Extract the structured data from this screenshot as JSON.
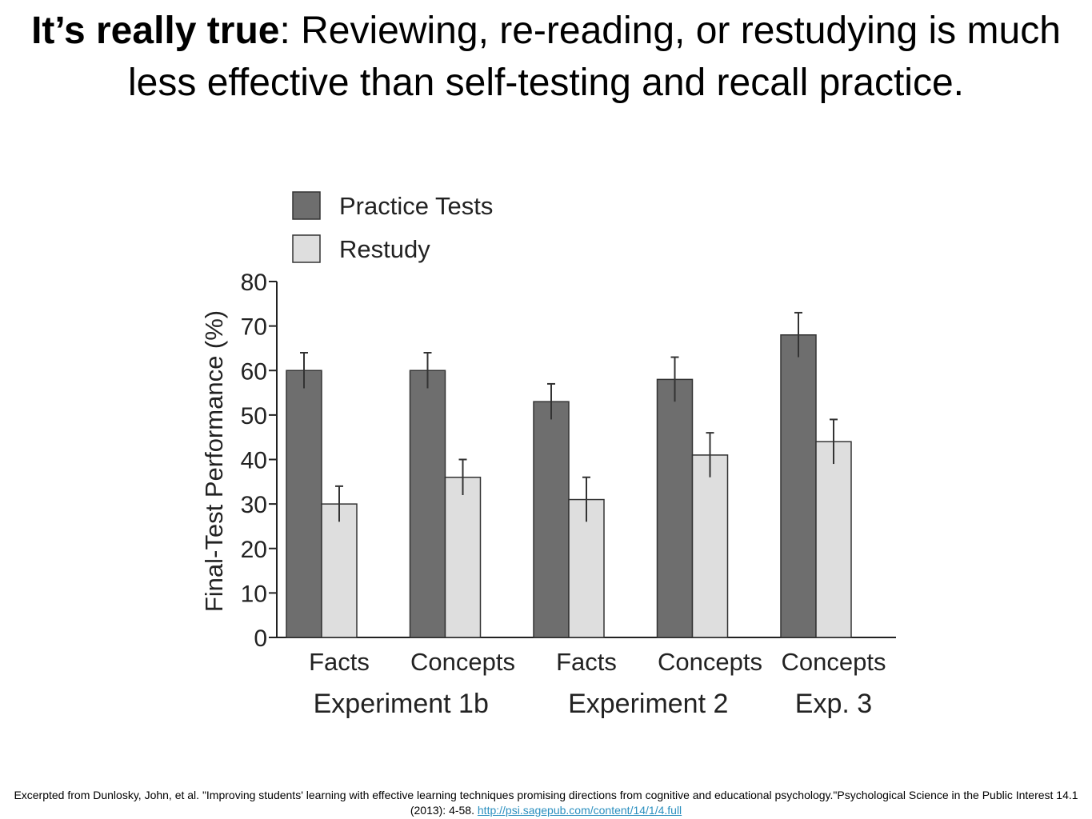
{
  "slide": {
    "title_bold": "It’s really true",
    "title_rest": ": Reviewing, re-reading, or restudying is much less effective than self-testing and recall practice.",
    "citation_text": "Excerpted from Dunlosky, John, et al. \"Improving students' learning with effective learning techniques promising directions from cognitive and educational psychology.\"Psychological Science in the Public Interest 14.1 (2013): 4-58. ",
    "citation_link": "http://psi.sagepub.com/content/14/1/4.full"
  },
  "chart_data": {
    "type": "bar",
    "title": "",
    "ylabel": "Final-Test Performance (%)",
    "xlabel": "",
    "ylim": [
      0,
      80
    ],
    "yticks": [
      0,
      10,
      20,
      30,
      40,
      50,
      60,
      70,
      80
    ],
    "grid": false,
    "legend_position": "top-left",
    "categories": [
      "Facts",
      "Concepts",
      "Facts",
      "Concepts",
      "Concepts"
    ],
    "groups": [
      {
        "label": "Experiment 1b",
        "categories": [
          0,
          1
        ]
      },
      {
        "label": "Experiment 2",
        "categories": [
          2,
          3
        ]
      },
      {
        "label": "Exp. 3",
        "categories": [
          4
        ]
      }
    ],
    "series": [
      {
        "name": "Practice Tests",
        "color": "#6e6e6e",
        "values": [
          60,
          60,
          53,
          58,
          68
        ],
        "error": [
          4,
          4,
          4,
          5,
          5
        ]
      },
      {
        "name": "Restudy",
        "color": "#dedede",
        "values": [
          30,
          36,
          31,
          41,
          44
        ],
        "error": [
          4,
          4,
          5,
          5,
          5
        ]
      }
    ]
  }
}
